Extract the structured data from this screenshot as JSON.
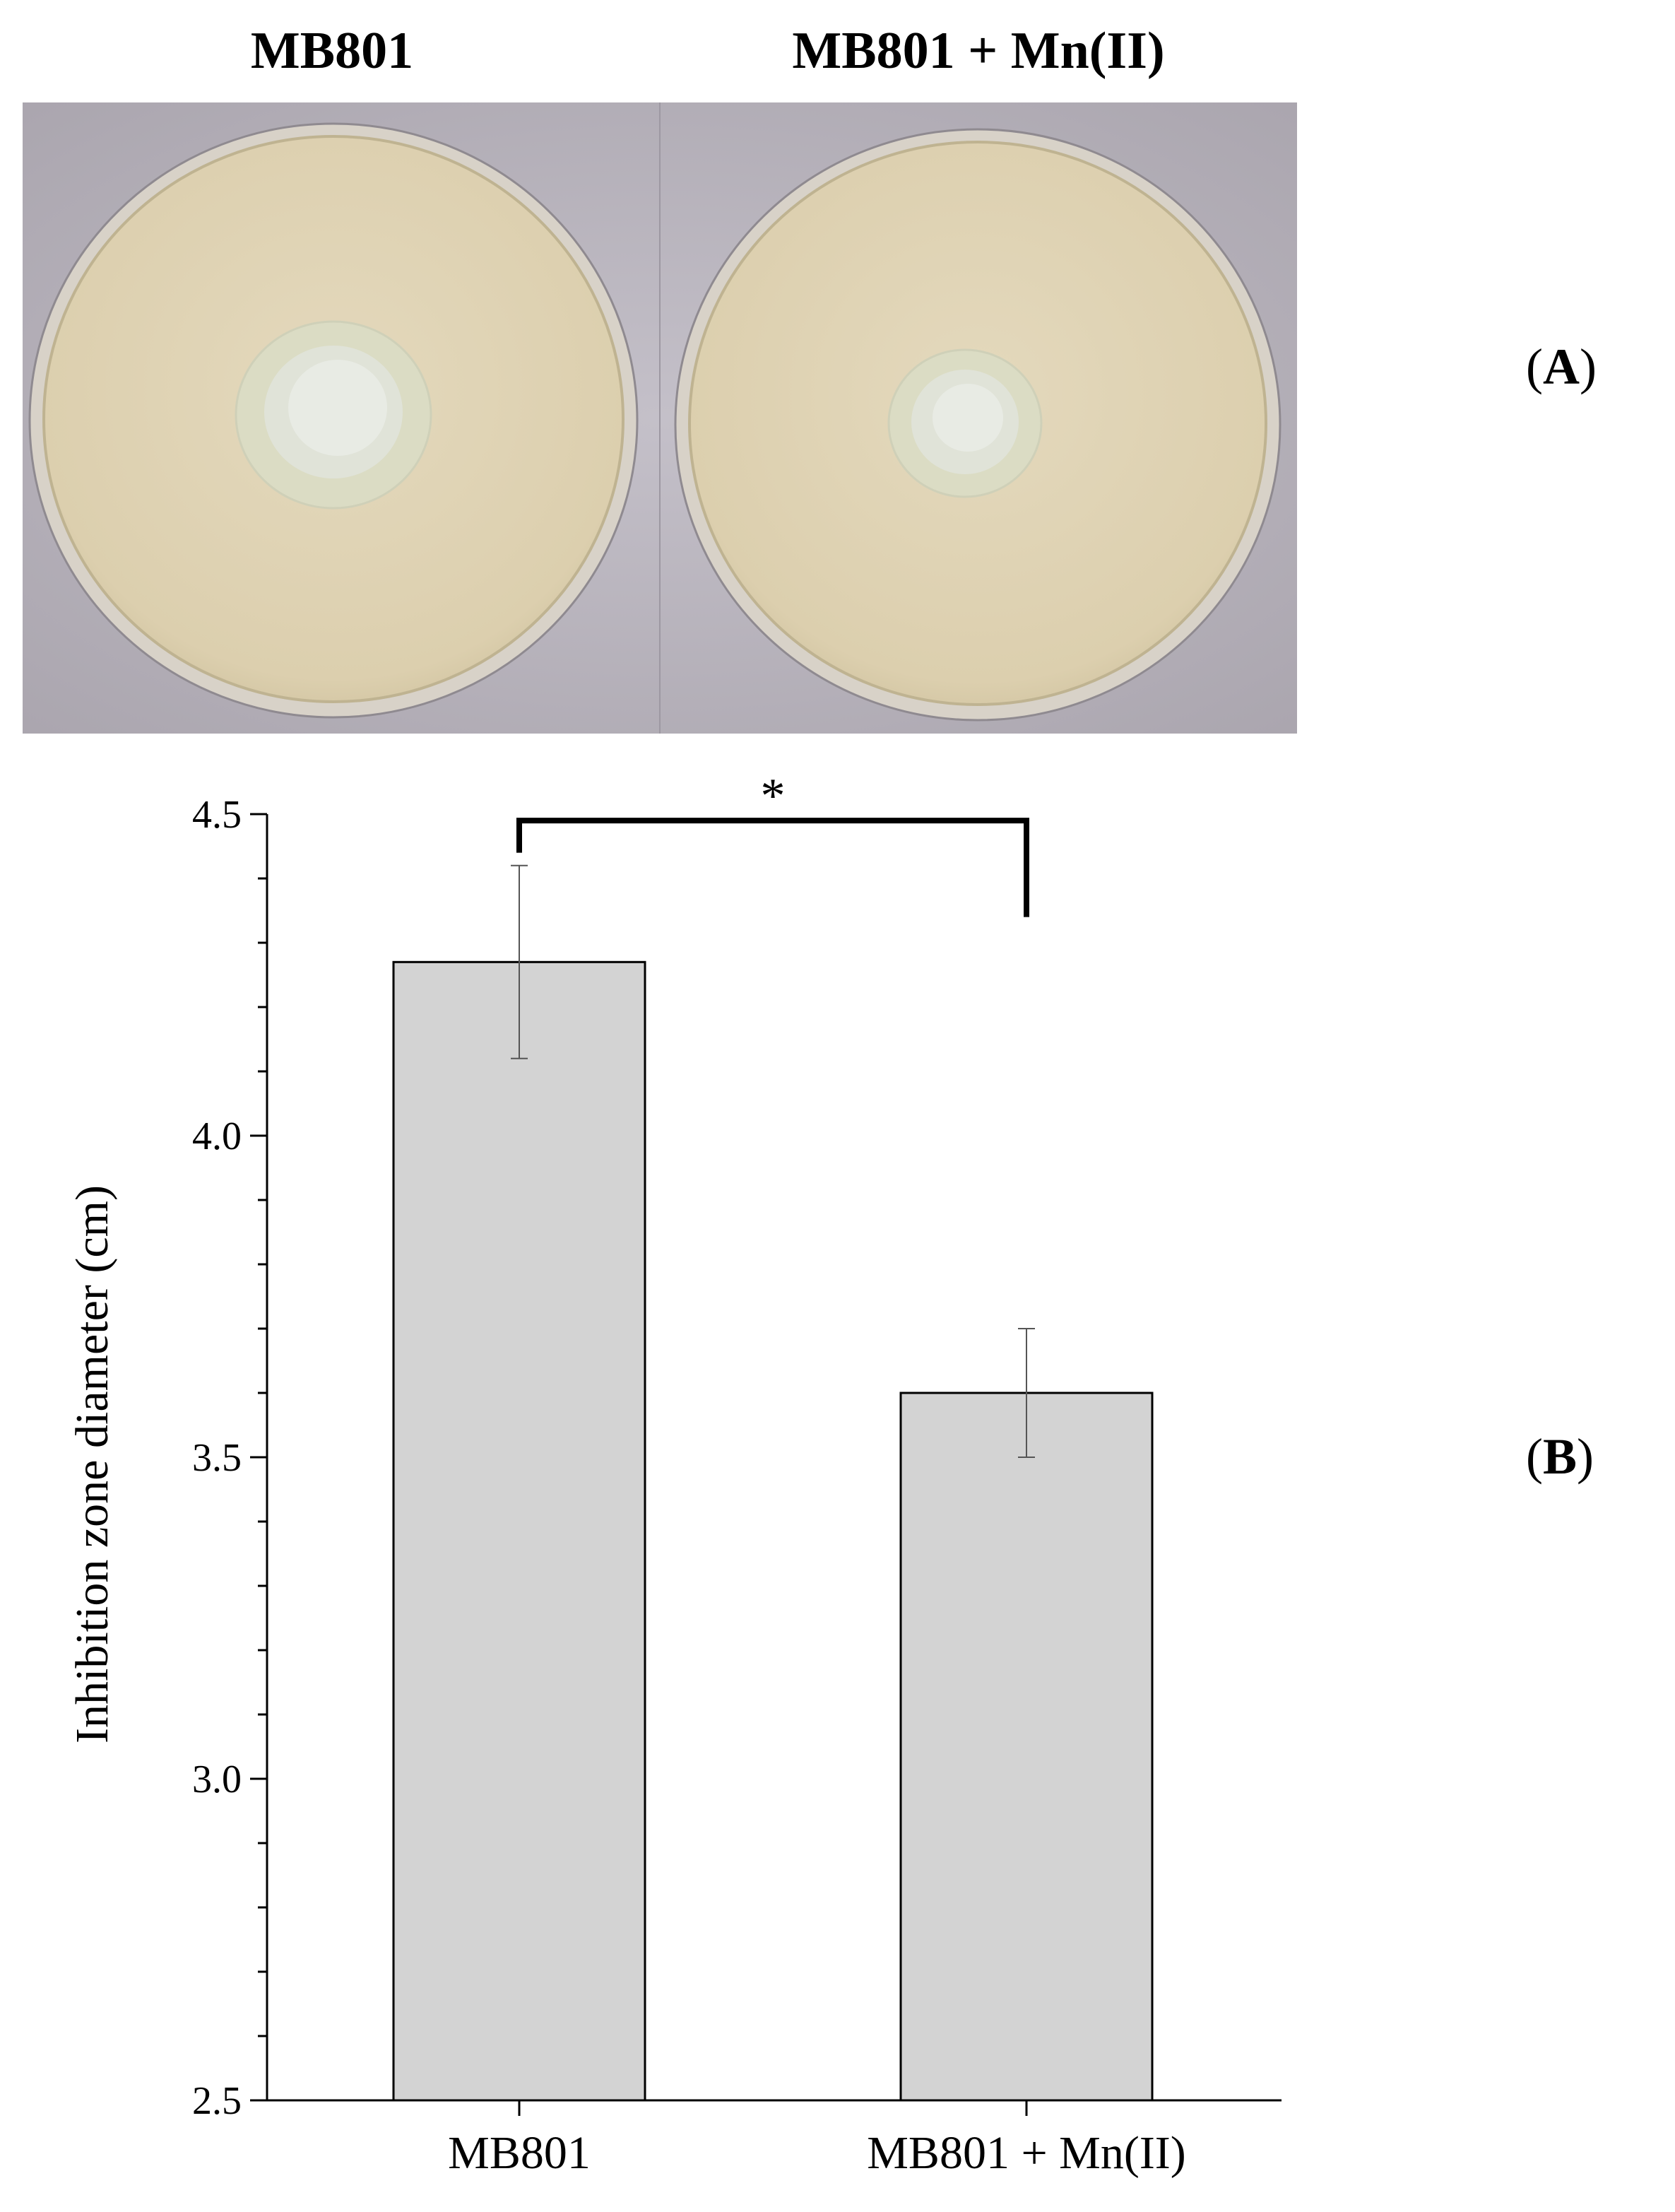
{
  "panel_a": {
    "titles": [
      "MB801",
      "MB801 + Mn(II)"
    ],
    "label_open": "(",
    "label_letter": "A",
    "label_close": ")"
  },
  "panel_b": {
    "label_open": "(",
    "label_letter": "B",
    "label_close": ")"
  },
  "chart_data": {
    "type": "bar",
    "categories": [
      "MB801",
      "MB801 + Mn(II)"
    ],
    "values": [
      4.27,
      3.6
    ],
    "error": [
      0.15,
      0.1
    ],
    "ylabel": "Inhibition zone diameter (cm)",
    "xlabel": "",
    "ylim": [
      2.5,
      4.5
    ],
    "yticks": [
      2.5,
      3.0,
      3.5,
      4.0,
      4.5
    ],
    "ytick_labels": [
      "2.5",
      "3.0",
      "3.5",
      "4.0",
      "4.5"
    ],
    "significance": {
      "between": [
        0,
        1
      ],
      "mark": "*"
    },
    "bar_color": "#d3d3d3",
    "grid": false
  }
}
